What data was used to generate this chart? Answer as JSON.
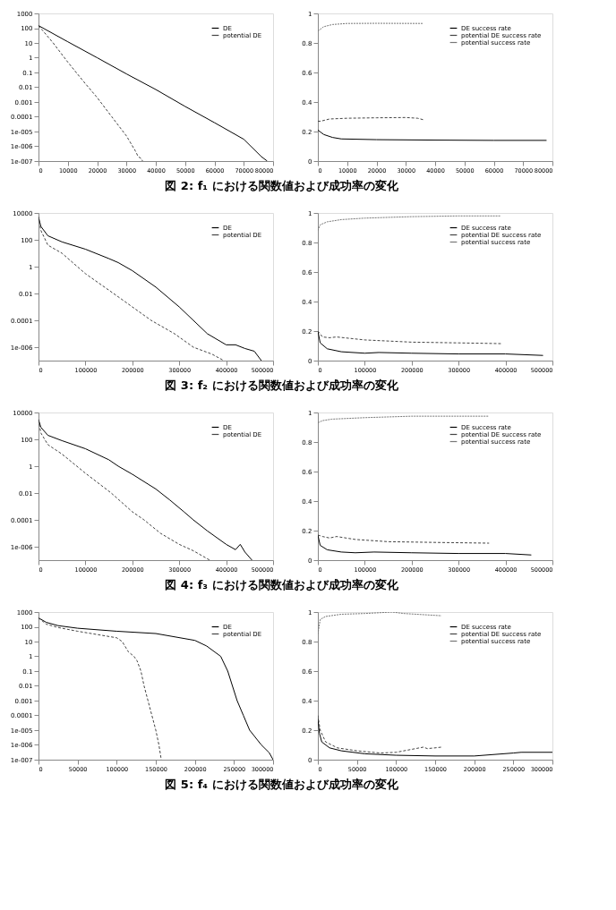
{
  "chart_data": [
    {
      "type": "line",
      "annotations": [
        "図 2: f₁ における関数値および成功率の変化"
      ],
      "xlim": [
        0,
        80000
      ],
      "xticks": [
        0,
        10000,
        20000,
        30000,
        40000,
        50000,
        60000,
        70000,
        80000
      ],
      "ylim": [
        1e-07,
        1000
      ],
      "log": true,
      "yticks": [
        1000,
        100,
        10,
        1,
        0.1,
        0.01,
        0.001,
        0.0001,
        {
          "value": 1e-05,
          "label": "1e-005"
        },
        {
          "value": 1e-06,
          "label": "1e-006"
        },
        {
          "value": 1e-07,
          "label": "1e-007"
        }
      ],
      "legend": "top right",
      "grid": false,
      "marker": "none",
      "series": [
        {
          "name": "DE",
          "color": "#000000",
          "line_style": "solid",
          "x": [
            0,
            10000,
            20000,
            30000,
            40000,
            50000,
            60000,
            70000,
            76000,
            78000
          ],
          "values": [
            150,
            12,
            1,
            0.08,
            0.007,
            0.0005,
            4e-05,
            3e-06,
            2e-07,
            1e-07
          ]
        },
        {
          "name": "potential DE",
          "color": "#444444",
          "line_style": "dashed",
          "x": [
            0,
            5000,
            10000,
            15000,
            20000,
            25000,
            30000,
            33000,
            34000,
            35000,
            35500
          ],
          "values": [
            150,
            10,
            0.5,
            0.03,
            0.002,
            0.0001,
            5e-06,
            5e-07,
            2e-07,
            1.5e-07,
            1e-07
          ]
        }
      ]
    },
    {
      "type": "line",
      "xlim": [
        0,
        80000
      ],
      "xticks": [
        0,
        10000,
        20000,
        30000,
        40000,
        50000,
        60000,
        70000,
        80000
      ],
      "ylim": [
        0,
        1
      ],
      "yticks": [
        0,
        0.2,
        0.4,
        0.6,
        0.8,
        1
      ],
      "legend": "top right",
      "grid": false,
      "marker": "none",
      "series": [
        {
          "name": "DE success rate",
          "color": "#000000",
          "line_style": "solid",
          "x": [
            0,
            2000,
            5000,
            8000,
            20000,
            40000,
            60000,
            78000
          ],
          "values": [
            0.21,
            0.18,
            0.16,
            0.15,
            0.145,
            0.142,
            0.14,
            0.14
          ]
        },
        {
          "name": "potential DE success rate",
          "color": "#444444",
          "line_style": "dashed",
          "x": [
            0,
            1000,
            4000,
            10000,
            20000,
            30000,
            34000,
            36000
          ],
          "values": [
            0.27,
            0.27,
            0.285,
            0.29,
            0.293,
            0.295,
            0.29,
            0.28
          ]
        },
        {
          "name": "potential success rate",
          "color": "#777777",
          "line_style": "dotted",
          "x": [
            0,
            2000,
            5000,
            10000,
            20000,
            36000
          ],
          "values": [
            0.88,
            0.91,
            0.925,
            0.932,
            0.933,
            0.932
          ]
        }
      ]
    },
    {
      "type": "line",
      "annotations": [
        "図 3: f₂ における関数値および成功率の変化"
      ],
      "xlim": [
        0,
        500000
      ],
      "xticks": [
        0,
        100000,
        200000,
        300000,
        400000,
        500000
      ],
      "ylim": [
        1e-07,
        10000
      ],
      "log": true,
      "yticks": [
        10000,
        100,
        1,
        0.01,
        0.0001,
        {
          "value": 1e-06,
          "label": "1e-006"
        }
      ],
      "legend": "top right",
      "grid": false,
      "marker": "none",
      "series": [
        {
          "name": "DE",
          "color": "#000000",
          "line_style": "solid",
          "x": [
            0,
            5000,
            20000,
            50000,
            100000,
            150000,
            170000,
            200000,
            250000,
            300000,
            330000,
            360000,
            400000,
            420000,
            440000,
            460000,
            475000
          ],
          "values": [
            5000,
            1000,
            200,
            70,
            20,
            4,
            2,
            0.5,
            0.03,
            0.001,
            0.0001,
            1e-05,
            1.5e-06,
            1.5e-06,
            8e-07,
            5e-07,
            1e-07
          ]
        },
        {
          "name": "potential DE",
          "color": "#444444",
          "line_style": "dashed",
          "x": [
            0,
            5000,
            20000,
            50000,
            100000,
            160000,
            200000,
            240000,
            290000,
            330000,
            370000,
            395000
          ],
          "values": [
            5000,
            500,
            40,
            10,
            0.3,
            0.01,
            0.001,
            0.0001,
            1e-05,
            1e-06,
            3e-07,
            1e-07
          ]
        }
      ]
    },
    {
      "type": "line",
      "xlim": [
        0,
        500000
      ],
      "xticks": [
        0,
        100000,
        200000,
        300000,
        400000,
        500000
      ],
      "ylim": [
        0,
        1
      ],
      "yticks": [
        0,
        0.2,
        0.4,
        0.6,
        0.8,
        1
      ],
      "legend": "top right",
      "grid": false,
      "marker": "none",
      "series": [
        {
          "name": "DE success rate",
          "color": "#000000",
          "line_style": "solid",
          "x": [
            0,
            5000,
            20000,
            50000,
            100000,
            130000,
            200000,
            300000,
            400000,
            480000
          ],
          "values": [
            0.2,
            0.12,
            0.08,
            0.06,
            0.05,
            0.055,
            0.05,
            0.045,
            0.045,
            0.035
          ]
        },
        {
          "name": "potential DE success rate",
          "color": "#444444",
          "line_style": "dashed",
          "x": [
            0,
            10000,
            25000,
            40000,
            100000,
            200000,
            300000,
            390000
          ],
          "values": [
            0.2,
            0.16,
            0.155,
            0.16,
            0.14,
            0.125,
            0.12,
            0.115
          ]
        },
        {
          "name": "potential success rate",
          "color": "#777777",
          "line_style": "dotted",
          "x": [
            0,
            5000,
            20000,
            50000,
            100000,
            200000,
            300000,
            390000
          ],
          "values": [
            0.88,
            0.92,
            0.94,
            0.955,
            0.965,
            0.975,
            0.98,
            0.98
          ]
        }
      ]
    },
    {
      "type": "line",
      "annotations": [
        "図 4: f₃ における関数値および成功率の変化"
      ],
      "xlim": [
        0,
        500000
      ],
      "xticks": [
        0,
        100000,
        200000,
        300000,
        400000,
        500000
      ],
      "ylim": [
        1e-07,
        10000
      ],
      "log": true,
      "yticks": [
        10000,
        100,
        1,
        0.01,
        0.0001,
        {
          "value": 1e-06,
          "label": "1e-006"
        }
      ],
      "legend": "top right",
      "grid": false,
      "marker": "none",
      "series": [
        {
          "name": "DE",
          "color": "#000000",
          "line_style": "solid",
          "x": [
            0,
            5000,
            20000,
            50000,
            100000,
            150000,
            170000,
            200000,
            250000,
            280000,
            310000,
            330000,
            360000,
            400000,
            420000,
            430000,
            440000,
            455000
          ],
          "values": [
            3000,
            800,
            200,
            80,
            20,
            3,
            1,
            0.25,
            0.02,
            0.003,
            0.0004,
            0.0001,
            1.5e-05,
            1.5e-06,
            6e-07,
            1.5e-06,
            4e-07,
            1e-07
          ]
        },
        {
          "name": "potential DE",
          "color": "#444444",
          "line_style": "dashed",
          "x": [
            0,
            5000,
            20000,
            50000,
            100000,
            155000,
            200000,
            225000,
            260000,
            300000,
            330000,
            350000,
            365000
          ],
          "values": [
            3000,
            300,
            40,
            8,
            0.3,
            0.01,
            0.0004,
            0.0001,
            1e-05,
            1.5e-06,
            5e-07,
            2e-07,
            1e-07
          ]
        }
      ]
    },
    {
      "type": "line",
      "xlim": [
        0,
        500000
      ],
      "xticks": [
        0,
        100000,
        200000,
        300000,
        400000,
        500000
      ],
      "ylim": [
        0,
        1
      ],
      "yticks": [
        0,
        0.2,
        0.4,
        0.6,
        0.8,
        1
      ],
      "legend": "top right",
      "grid": false,
      "marker": "none",
      "series": [
        {
          "name": "DE success rate",
          "color": "#000000",
          "line_style": "solid",
          "x": [
            0,
            5000,
            20000,
            50000,
            80000,
            120000,
            200000,
            300000,
            400000,
            455000
          ],
          "values": [
            0.17,
            0.1,
            0.07,
            0.055,
            0.05,
            0.055,
            0.05,
            0.045,
            0.045,
            0.035
          ]
        },
        {
          "name": "potential DE success rate",
          "color": "#444444",
          "line_style": "dashed",
          "x": [
            0,
            10000,
            25000,
            40000,
            80000,
            150000,
            250000,
            365000
          ],
          "values": [
            0.17,
            0.16,
            0.15,
            0.16,
            0.14,
            0.125,
            0.12,
            0.115
          ]
        },
        {
          "name": "potential success rate",
          "color": "#777777",
          "line_style": "dotted",
          "x": [
            0,
            10000,
            30000,
            100000,
            200000,
            365000
          ],
          "values": [
            0.93,
            0.945,
            0.955,
            0.965,
            0.975,
            0.975
          ]
        }
      ]
    },
    {
      "type": "line",
      "annotations": [
        "図 5: f₄ における関数値および成功率の変化"
      ],
      "xlim": [
        0,
        300000
      ],
      "xticks": [
        0,
        50000,
        100000,
        150000,
        200000,
        250000,
        300000
      ],
      "ylim": [
        1e-07,
        1000
      ],
      "log": true,
      "yticks": [
        1000,
        100,
        10,
        1,
        0.1,
        0.01,
        0.001,
        0.0001,
        {
          "value": 1e-05,
          "label": "1e-005"
        },
        {
          "value": 1e-06,
          "label": "1e-006"
        },
        {
          "value": 1e-07,
          "label": "1e-007"
        }
      ],
      "legend": "top right",
      "grid": false,
      "marker": "none",
      "series": [
        {
          "name": "DE",
          "color": "#000000",
          "line_style": "solid",
          "x": [
            0,
            10000,
            25000,
            50000,
            100000,
            150000,
            200000,
            215000,
            233000,
            242000,
            254000,
            262000,
            270000,
            285000,
            295000,
            300000
          ],
          "values": [
            400,
            200,
            120,
            80,
            50,
            35,
            12,
            5,
            1,
            0.1,
            0.001,
            0.0001,
            1e-05,
            1e-06,
            3e-07,
            1e-07
          ]
        },
        {
          "name": "potential DE",
          "color": "#444444",
          "line_style": "dashed",
          "x": [
            0,
            10000,
            25000,
            50000,
            75000,
            100000,
            107000,
            115000,
            122000,
            126000,
            131000,
            135000,
            140000,
            145000,
            150000,
            154000,
            157000
          ],
          "values": [
            400,
            150,
            90,
            50,
            30,
            18,
            10,
            2,
            1,
            0.5,
            0.1,
            0.01,
            0.001,
            0.0001,
            1e-05,
            1e-06,
            1e-07
          ]
        }
      ]
    },
    {
      "type": "line",
      "xlim": [
        0,
        300000
      ],
      "xticks": [
        0,
        50000,
        100000,
        150000,
        200000,
        250000,
        300000
      ],
      "ylim": [
        0,
        1
      ],
      "yticks": [
        0,
        0.2,
        0.4,
        0.6,
        0.8,
        1
      ],
      "legend": "top right",
      "grid": false,
      "marker": "none",
      "series": [
        {
          "name": "DE success rate",
          "color": "#000000",
          "line_style": "solid",
          "x": [
            0,
            2000,
            5000,
            15000,
            30000,
            60000,
            100000,
            150000,
            200000,
            250000,
            260000,
            300000
          ],
          "values": [
            0.28,
            0.18,
            0.12,
            0.08,
            0.06,
            0.04,
            0.03,
            0.025,
            0.025,
            0.045,
            0.05,
            0.05
          ]
        },
        {
          "name": "potential DE success rate",
          "color": "#444444",
          "line_style": "dashed",
          "x": [
            0,
            3000,
            10000,
            25000,
            50000,
            80000,
            100000,
            120000,
            135000,
            140000,
            150000,
            158000
          ],
          "values": [
            0.3,
            0.2,
            0.12,
            0.08,
            0.06,
            0.045,
            0.05,
            0.07,
            0.085,
            0.075,
            0.08,
            0.085
          ]
        },
        {
          "name": "potential success rate",
          "color": "#777777",
          "line_style": "dotted",
          "x": [
            0,
            3000,
            10000,
            30000,
            60000,
            95000,
            110000,
            158000
          ],
          "values": [
            0.85,
            0.95,
            0.97,
            0.985,
            0.99,
            1.0,
            0.99,
            0.975
          ]
        }
      ]
    }
  ]
}
